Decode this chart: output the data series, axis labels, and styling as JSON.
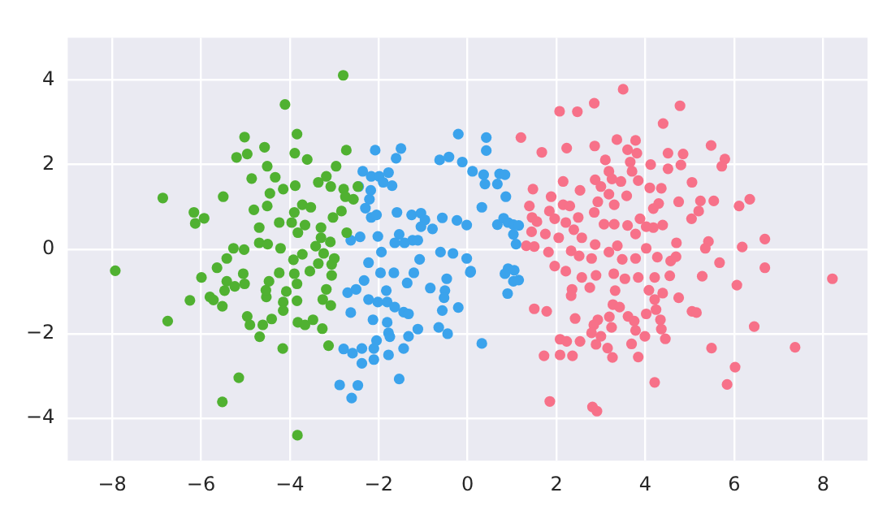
{
  "chart_data": {
    "type": "scatter",
    "xlim": [
      -9,
      9
    ],
    "ylim": [
      -5,
      5
    ],
    "xticks": [
      -8,
      -6,
      -4,
      -2,
      0,
      2,
      4,
      6,
      8
    ],
    "yticks": [
      -4,
      -2,
      0,
      2,
      4
    ],
    "grid": true,
    "legend": false,
    "marker": "circle",
    "series": [
      {
        "color": "#50b131",
        "x": [
          -2.8,
          -4.11,
          -5.02,
          -3.84,
          -5.2,
          -4.96,
          -4.57,
          -3.89,
          -3.61,
          -4.51,
          -2.73,
          -2.96,
          -4.86,
          -4.33,
          -6.86,
          -5.5,
          -6.16,
          -5.93,
          -6.13,
          -4.45,
          -4.15,
          -3.88,
          -3.36,
          -3.18,
          -3.08,
          -2.79,
          -2.47,
          -2.75,
          -2.57,
          -4.81,
          -4.51,
          -4.69,
          -4.24,
          -3.9,
          -3.72,
          -3.53,
          -3.96,
          -3.82,
          -3.66,
          -3.3,
          -3.03,
          -2.84,
          -2.72,
          -5.27,
          -5.03,
          -4.69,
          -4.5,
          -4.21,
          -3.92,
          -3.72,
          -3.42,
          -3.3,
          -3.09,
          -3.24,
          -3.0,
          -3.36,
          -3.06,
          -3.55,
          -7.93,
          -5.99,
          -5.64,
          -5.42,
          -5.05,
          -5.02,
          -5.42,
          -5.24,
          -5.47,
          -4.47,
          -4.24,
          -3.9,
          -3.84,
          -4.08,
          -4.53,
          -4.54,
          -6.25,
          -5.8,
          -5.72,
          -5.52,
          -4.15,
          -3.84,
          -3.26,
          -3.18,
          -3.06,
          -3.08,
          -4.15,
          -4.41,
          -4.96,
          -4.9,
          -4.61,
          -3.82,
          -3.66,
          -3.48,
          -3.27,
          -4.68,
          -4.16,
          -3.13,
          -6.75,
          -5.15,
          -5.52,
          -3.83
        ],
        "values": [
          4.11,
          3.42,
          2.65,
          2.72,
          2.17,
          2.25,
          2.41,
          2.27,
          2.12,
          1.96,
          2.34,
          1.96,
          1.67,
          1.7,
          1.21,
          1.24,
          0.87,
          0.73,
          0.61,
          1.32,
          1.42,
          1.5,
          1.58,
          1.72,
          1.48,
          1.42,
          1.48,
          1.24,
          1.18,
          0.93,
          1.02,
          0.51,
          0.63,
          0.87,
          1.05,
          0.99,
          0.63,
          0.39,
          0.57,
          0.51,
          0.75,
          0.9,
          0.39,
          0.02,
          -0.01,
          0.15,
          0.12,
          0.02,
          -0.25,
          -0.12,
          0.07,
          0.27,
          0.17,
          -0.1,
          -0.22,
          -0.34,
          -0.36,
          -0.52,
          -0.51,
          -0.67,
          -0.44,
          -0.22,
          -0.58,
          -0.82,
          -0.76,
          -0.88,
          -0.98,
          -0.76,
          -0.56,
          -0.58,
          -0.82,
          -1.0,
          -1.13,
          -0.97,
          -1.21,
          -1.13,
          -1.2,
          -1.35,
          -1.25,
          -1.22,
          -1.19,
          -0.95,
          -0.62,
          -1.33,
          -1.45,
          -1.65,
          -1.59,
          -1.79,
          -1.79,
          -1.73,
          -1.79,
          -1.67,
          -1.88,
          -2.07,
          -2.35,
          -2.28,
          -1.7,
          -3.04,
          -3.61,
          -4.4
        ]
      },
      {
        "color": "#3ba3ec",
        "x": [
          -0.21,
          -2.08,
          -1.5,
          -1.61,
          -0.63,
          -0.42,
          -0.12,
          -2.36,
          -2.17,
          -1.99,
          -1.78,
          -1.9,
          -1.7,
          -2.45,
          -2.18,
          -2.21,
          -2.3,
          -2.17,
          -2.05,
          -1.59,
          -1.26,
          -1.05,
          -0.96,
          -0.57,
          -0.24,
          -0.02,
          0.11,
          -0.79,
          -1.05,
          -1.24,
          -1.54,
          -2.02,
          -2.42,
          -2.63,
          -1.64,
          -1.42,
          -1.12,
          -1.94,
          -0.61,
          -0.33,
          -0.02,
          -1.08,
          -2.23,
          -2.33,
          -1.96,
          -1.66,
          -1.36,
          -1.21,
          -0.84,
          -0.47,
          -0.51,
          -0.53,
          0.06,
          -2.7,
          -2.51,
          -2.23,
          -2.02,
          -1.83,
          -1.81,
          -1.64,
          -1.44,
          -1.33,
          -2.63,
          -2.13,
          -1.81,
          -1.78,
          -2.05,
          -1.75,
          -1.33,
          -1.12,
          -0.65,
          -0.45,
          -0.57,
          -0.21,
          -2.79,
          -2.59,
          -2.38,
          -2.11,
          -1.78,
          -1.44,
          -2.38,
          -2.11,
          -1.54,
          -2.88,
          -2.47,
          -2.61,
          0.32,
          0.32,
          0.42,
          0.42,
          0.36,
          0.39,
          0.67,
          0.72,
          0.84,
          0.86,
          0.67,
          0.81,
          0.91,
          1.03,
          1.15,
          1.03,
          1.09,
          0.07,
          0.91,
          0.84,
          1.05,
          1.03,
          1.15,
          0.9
        ],
        "values": [
          2.72,
          2.34,
          2.38,
          2.15,
          2.11,
          2.18,
          2.06,
          1.84,
          1.72,
          1.72,
          1.81,
          1.58,
          1.5,
          1.48,
          1.39,
          1.18,
          0.97,
          0.75,
          0.81,
          0.87,
          0.81,
          0.85,
          0.69,
          0.74,
          0.68,
          0.57,
          1.84,
          0.48,
          0.53,
          0.21,
          0.35,
          0.3,
          0.29,
          0.21,
          0.15,
          0.15,
          0.21,
          -0.07,
          -0.07,
          -0.1,
          -0.22,
          -0.24,
          -0.32,
          -0.74,
          -0.56,
          -0.56,
          -0.8,
          -0.56,
          -0.92,
          -0.7,
          -0.98,
          -1.15,
          -0.55,
          -1.03,
          -0.95,
          -1.19,
          -1.25,
          -0.98,
          -1.25,
          -1.37,
          -1.49,
          -1.53,
          -1.5,
          -1.67,
          -1.73,
          -1.98,
          -2.16,
          -2.07,
          -2.06,
          -1.89,
          -1.85,
          -2.0,
          -1.45,
          -1.38,
          -2.36,
          -2.46,
          -2.35,
          -2.35,
          -2.5,
          -2.35,
          -2.7,
          -2.61,
          -3.07,
          -3.21,
          -3.22,
          -3.52,
          -2.23,
          0.99,
          2.64,
          2.33,
          1.76,
          1.54,
          1.54,
          1.78,
          1.76,
          1.24,
          0.58,
          0.73,
          0.63,
          0.58,
          0.56,
          0.35,
          0.12,
          -0.52,
          -0.46,
          -0.58,
          -0.5,
          -0.76,
          -0.73,
          -1.05
        ]
      },
      {
        "color": "#f77189",
        "x": [
          3.5,
          2.85,
          4.78,
          2.07,
          2.47,
          4.4,
          1.2,
          1.67,
          2.23,
          2.86,
          3.36,
          3.78,
          3.6,
          3.81,
          4.51,
          4.85,
          5.48,
          5.79,
          5.72,
          3.1,
          3.66,
          4.12,
          4.51,
          4.8,
          3.18,
          3.25,
          3.7,
          2.15,
          2.87,
          3.0,
          3.45,
          3.84,
          4.1,
          4.36,
          5.05,
          1.47,
          2.53,
          1.88,
          3.18,
          3.58,
          1.39,
          1.84,
          2.15,
          2.3,
          2.93,
          3.3,
          4.3,
          4.18,
          4.75,
          5.24,
          5.54,
          6.35,
          6.11,
          5.2,
          1.45,
          1.56,
          1.96,
          2.21,
          2.49,
          2.85,
          3.07,
          3.3,
          3.6,
          3.88,
          4.02,
          4.18,
          4.39,
          5.04,
          1.44,
          1.75,
          2.05,
          2.39,
          2.57,
          2.87,
          3.18,
          3.37,
          3.78,
          4.02,
          4.7,
          5.42,
          5.35,
          6.18,
          6.69,
          1.32,
          1.5,
          1.82,
          2.33,
          2.51,
          2.79,
          3.48,
          3.78,
          4.27,
          4.57,
          4.69,
          1.96,
          2.21,
          2.57,
          2.89,
          3.29,
          3.54,
          3.84,
          4.21,
          4.55,
          5.28,
          5.67,
          6.69,
          8.21,
          6.06,
          2.35,
          2.75,
          3.32,
          4.08,
          4.39,
          2.33,
          4.21,
          4.75,
          3.27,
          3.42,
          1.5,
          1.78,
          4.24,
          4.02,
          5.05,
          5.15,
          2.42,
          3.19,
          3.61,
          3.75,
          4.34,
          2.93,
          2.84,
          3.24,
          2.79,
          3.78,
          4.36,
          6.45,
          3.0,
          3.99,
          2.08,
          2.23,
          2.53,
          2.89,
          3.69,
          4.45,
          3.15,
          5.49,
          7.37,
          1.72,
          2.08,
          2.36,
          3.26,
          3.84,
          6.02,
          4.21,
          5.84,
          1.85,
          2.81,
          2.91
        ],
        "values": [
          3.78,
          3.45,
          3.39,
          3.26,
          3.25,
          2.97,
          2.64,
          2.29,
          2.39,
          2.44,
          2.59,
          2.57,
          2.35,
          2.27,
          2.27,
          2.25,
          2.45,
          2.13,
          1.96,
          2.11,
          2.06,
          2.0,
          1.9,
          1.99,
          1.84,
          1.66,
          1.84,
          1.6,
          1.64,
          1.48,
          1.6,
          1.62,
          1.45,
          1.44,
          1.58,
          1.42,
          1.39,
          1.24,
          1.3,
          1.26,
          1.02,
          0.9,
          1.05,
          1.02,
          1.12,
          1.05,
          1.08,
          0.96,
          1.12,
          1.14,
          1.14,
          1.18,
          1.02,
          0.9,
          0.75,
          0.65,
          0.72,
          0.63,
          0.75,
          0.87,
          0.59,
          0.59,
          0.56,
          0.72,
          0.53,
          0.51,
          0.57,
          0.72,
          0.41,
          0.36,
          0.27,
          0.46,
          0.27,
          0.11,
          -0.07,
          0.08,
          0.36,
          0.02,
          0.15,
          0.18,
          0.02,
          0.05,
          0.24,
          0.08,
          0.06,
          -0.07,
          -0.04,
          -0.16,
          -0.22,
          -0.24,
          -0.22,
          -0.19,
          -0.28,
          -0.18,
          -0.4,
          -0.52,
          -0.67,
          -0.62,
          -0.58,
          -0.7,
          -0.67,
          -0.67,
          -0.63,
          -0.64,
          -0.32,
          -0.44,
          -0.7,
          -0.85,
          -0.95,
          -0.91,
          -0.98,
          -0.97,
          -1.04,
          -1.1,
          -1.19,
          -1.15,
          -1.31,
          -1.37,
          -1.41,
          -1.47,
          -1.43,
          -1.53,
          -1.47,
          -1.5,
          -1.64,
          -1.6,
          -1.59,
          -1.7,
          -1.67,
          -1.67,
          -1.79,
          -1.85,
          -1.98,
          -1.92,
          -1.89,
          -1.83,
          -2.06,
          -2.06,
          -2.13,
          -2.18,
          -2.18,
          -2.25,
          -2.24,
          -2.12,
          -2.34,
          -2.34,
          -2.32,
          -2.52,
          -2.5,
          -2.52,
          -2.56,
          -2.55,
          -2.79,
          -3.15,
          -3.2,
          -3.6,
          -3.73,
          -3.83
        ]
      }
    ]
  }
}
